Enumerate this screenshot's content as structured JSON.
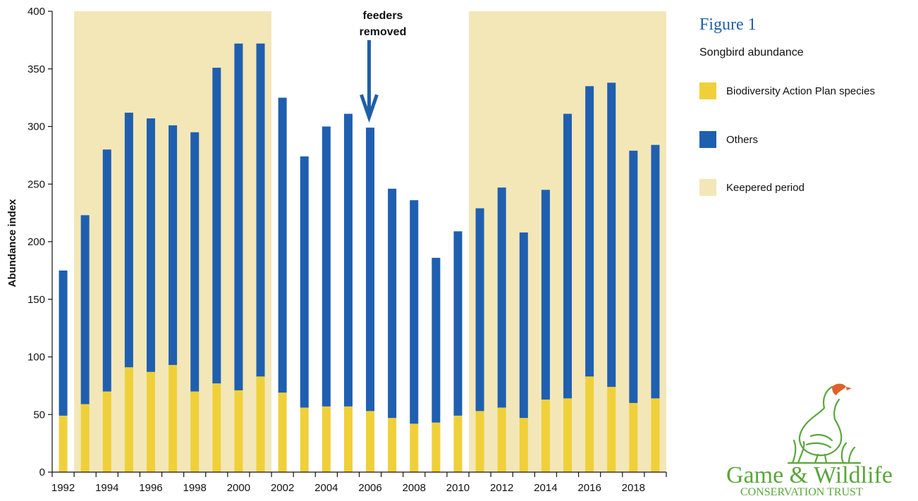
{
  "figure_label": "Figure 1",
  "logo": {
    "name": "Game & Wildlife",
    "subtitle": "CONSERVATION TRUST",
    "icon": "partridge-icon"
  },
  "colors": {
    "bap": "#f0d03a",
    "others": "#1f5fb0",
    "keepered": "#f3e7b8",
    "annotation_arrow": "#1f5fa8",
    "figure_label": "#1f5fa8",
    "logo_green": "#5aa63c"
  },
  "chart_data": {
    "type": "bar",
    "stacked": true,
    "title": "Songbird abundance",
    "ylabel": "Abundance index",
    "xlabel": "",
    "ylim": [
      0,
      400
    ],
    "yticks": [
      0,
      50,
      100,
      150,
      200,
      250,
      300,
      350,
      400
    ],
    "categories": [
      1992,
      1993,
      1994,
      1995,
      1996,
      1997,
      1998,
      1999,
      2000,
      2001,
      2002,
      2003,
      2004,
      2005,
      2006,
      2007,
      2008,
      2009,
      2010,
      2011,
      2012,
      2013,
      2014,
      2015,
      2016,
      2017,
      2018,
      2019
    ],
    "xtick_labels": [
      "1992",
      "1994",
      "1996",
      "1998",
      "2000",
      "2002",
      "2004",
      "2006",
      "2008",
      "2010",
      "2012",
      "2014",
      "2016",
      "2018"
    ],
    "series": [
      {
        "name": "Biodiversity Action Plan species",
        "color": "#f0d03a",
        "values": [
          49,
          59,
          70,
          91,
          87,
          93,
          70,
          77,
          71,
          83,
          69,
          56,
          57,
          57,
          53,
          47,
          42,
          43,
          49,
          53,
          56,
          47,
          63,
          64,
          83,
          74,
          60,
          64
        ]
      },
      {
        "name": "Others",
        "color": "#1f5fb0",
        "values": [
          126,
          164,
          210,
          221,
          220,
          208,
          225,
          274,
          301,
          289,
          256,
          218,
          243,
          254,
          246,
          199,
          194,
          143,
          160,
          176,
          191,
          161,
          182,
          247,
          252,
          264,
          219,
          220
        ]
      }
    ],
    "totals": [
      175,
      223,
      280,
      312,
      307,
      301,
      295,
      351,
      372,
      372,
      325,
      274,
      300,
      311,
      299,
      246,
      236,
      186,
      209,
      229,
      247,
      208,
      245,
      311,
      335,
      338,
      279,
      284
    ],
    "shaded_periods": [
      {
        "name": "Keepered period",
        "from": 1993,
        "to": 2001,
        "color": "#f3e7b8"
      },
      {
        "name": "Keepered period",
        "from": 2011,
        "to": 2019,
        "color": "#f3e7b8"
      }
    ],
    "annotation": {
      "lines": [
        "feeders",
        "removed"
      ],
      "at": 2006,
      "arrow_top_value": 375,
      "arrow_bottom_value": 308
    },
    "legend": {
      "placement": "right",
      "items": [
        {
          "label": "Biodiversity Action Plan species",
          "color": "#f0d03a"
        },
        {
          "label": "Others",
          "color": "#1f5fb0"
        },
        {
          "label": "Keepered period",
          "color": "#f3e7b8"
        }
      ]
    },
    "grid": false
  }
}
